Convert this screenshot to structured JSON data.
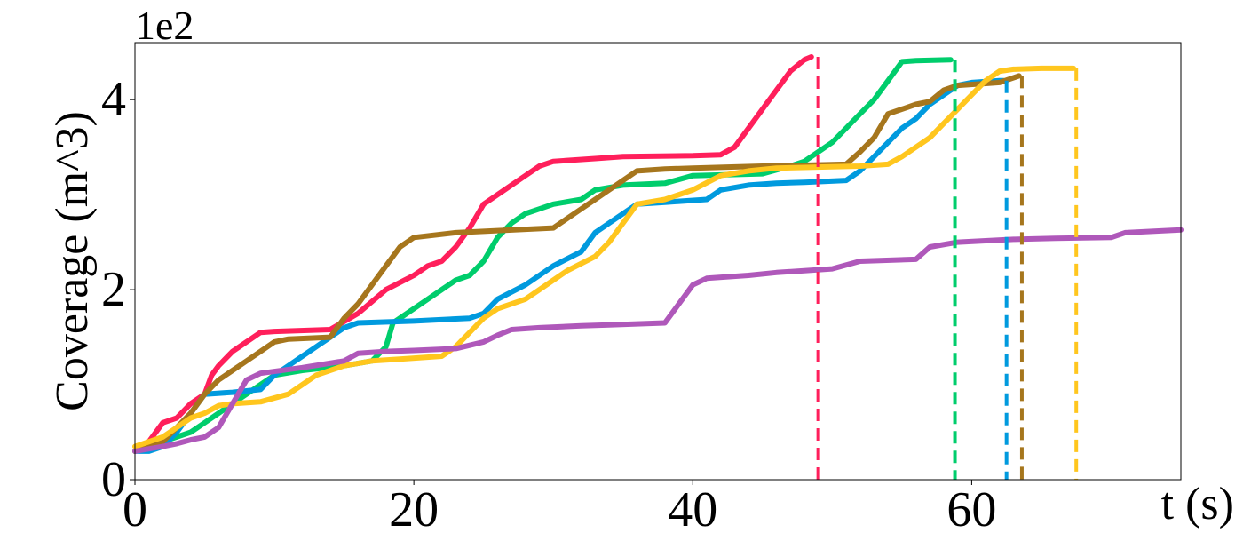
{
  "chart_data": {
    "type": "line",
    "title": "",
    "xlabel": "t (s)",
    "ylabel": "Coverage (m^3)",
    "y_offset_label": "1e2",
    "xlim": [
      0,
      75
    ],
    "ylim": [
      0,
      4.6
    ],
    "xticks": [
      0,
      20,
      40,
      60
    ],
    "yticks": [
      0,
      2,
      4
    ],
    "grid": false,
    "legend": "none",
    "series": [
      {
        "color": "#ff1f5b",
        "end_marker_x": 49,
        "points": [
          [
            0,
            0.3
          ],
          [
            1,
            0.4
          ],
          [
            2,
            0.6
          ],
          [
            3,
            0.65
          ],
          [
            4,
            0.8
          ],
          [
            5,
            0.9
          ],
          [
            5.5,
            1.1
          ],
          [
            6,
            1.2
          ],
          [
            7,
            1.35
          ],
          [
            8,
            1.45
          ],
          [
            9,
            1.55
          ],
          [
            10,
            1.56
          ],
          [
            14,
            1.58
          ],
          [
            16,
            1.75
          ],
          [
            18,
            2.0
          ],
          [
            20,
            2.15
          ],
          [
            21,
            2.25
          ],
          [
            22,
            2.3
          ],
          [
            23,
            2.45
          ],
          [
            24,
            2.65
          ],
          [
            25,
            2.9
          ],
          [
            26,
            3.0
          ],
          [
            27,
            3.1
          ],
          [
            28,
            3.2
          ],
          [
            29,
            3.3
          ],
          [
            30,
            3.35
          ],
          [
            33,
            3.38
          ],
          [
            35,
            3.4
          ],
          [
            40,
            3.41
          ],
          [
            42,
            3.42
          ],
          [
            43,
            3.5
          ],
          [
            44,
            3.7
          ],
          [
            45,
            3.9
          ],
          [
            46,
            4.1
          ],
          [
            47,
            4.3
          ],
          [
            48,
            4.42
          ],
          [
            48.5,
            4.45
          ]
        ]
      },
      {
        "color": "#00cd6c",
        "end_marker_x": 58.8,
        "points": [
          [
            0,
            0.3
          ],
          [
            2,
            0.4
          ],
          [
            4,
            0.5
          ],
          [
            5,
            0.6
          ],
          [
            6,
            0.7
          ],
          [
            7,
            0.8
          ],
          [
            8,
            0.9
          ],
          [
            9,
            1.0
          ],
          [
            10,
            1.1
          ],
          [
            12,
            1.15
          ],
          [
            15,
            1.2
          ],
          [
            17,
            1.25
          ],
          [
            18,
            1.4
          ],
          [
            18.5,
            1.65
          ],
          [
            20,
            1.8
          ],
          [
            21,
            1.9
          ],
          [
            22,
            2.0
          ],
          [
            23,
            2.1
          ],
          [
            24,
            2.15
          ],
          [
            25,
            2.3
          ],
          [
            26,
            2.55
          ],
          [
            27,
            2.7
          ],
          [
            28,
            2.8
          ],
          [
            29,
            2.85
          ],
          [
            30,
            2.9
          ],
          [
            32,
            2.95
          ],
          [
            33,
            3.05
          ],
          [
            35,
            3.1
          ],
          [
            38,
            3.12
          ],
          [
            40,
            3.2
          ],
          [
            45,
            3.22
          ],
          [
            47,
            3.3
          ],
          [
            48,
            3.35
          ],
          [
            49,
            3.45
          ],
          [
            50,
            3.55
          ],
          [
            51,
            3.7
          ],
          [
            52,
            3.85
          ],
          [
            53,
            4.0
          ],
          [
            54,
            4.2
          ],
          [
            55,
            4.4
          ],
          [
            56,
            4.41
          ],
          [
            58.5,
            4.42
          ]
        ]
      },
      {
        "color": "#009ade",
        "end_marker_x": 62.5,
        "points": [
          [
            0,
            0.3
          ],
          [
            1,
            0.3
          ],
          [
            2,
            0.35
          ],
          [
            3,
            0.5
          ],
          [
            4,
            0.7
          ],
          [
            5,
            0.9
          ],
          [
            7,
            0.92
          ],
          [
            9,
            0.95
          ],
          [
            10,
            1.1
          ],
          [
            11,
            1.2
          ],
          [
            12,
            1.3
          ],
          [
            13,
            1.4
          ],
          [
            14,
            1.5
          ],
          [
            15,
            1.6
          ],
          [
            16,
            1.65
          ],
          [
            20,
            1.67
          ],
          [
            24,
            1.7
          ],
          [
            25,
            1.75
          ],
          [
            26,
            1.9
          ],
          [
            28,
            2.05
          ],
          [
            30,
            2.25
          ],
          [
            32,
            2.4
          ],
          [
            33,
            2.6
          ],
          [
            34,
            2.7
          ],
          [
            35,
            2.8
          ],
          [
            36,
            2.9
          ],
          [
            38,
            2.92
          ],
          [
            41,
            2.95
          ],
          [
            42,
            3.05
          ],
          [
            44,
            3.1
          ],
          [
            46,
            3.12
          ],
          [
            48,
            3.13
          ],
          [
            51,
            3.15
          ],
          [
            52,
            3.25
          ],
          [
            53,
            3.4
          ],
          [
            54,
            3.55
          ],
          [
            55,
            3.7
          ],
          [
            56,
            3.8
          ],
          [
            57,
            3.95
          ],
          [
            58,
            4.05
          ],
          [
            59,
            4.15
          ],
          [
            60,
            4.18
          ],
          [
            62,
            4.2
          ],
          [
            62.3,
            4.2
          ]
        ]
      },
      {
        "color": "#a6761d",
        "end_marker_x": 63.6,
        "points": [
          [
            0,
            0.3
          ],
          [
            2,
            0.4
          ],
          [
            3,
            0.55
          ],
          [
            4,
            0.7
          ],
          [
            5,
            0.9
          ],
          [
            6,
            1.05
          ],
          [
            7,
            1.15
          ],
          [
            8,
            1.25
          ],
          [
            9,
            1.35
          ],
          [
            10,
            1.45
          ],
          [
            11,
            1.48
          ],
          [
            14,
            1.5
          ],
          [
            15,
            1.7
          ],
          [
            16,
            1.85
          ],
          [
            17,
            2.05
          ],
          [
            18,
            2.25
          ],
          [
            19,
            2.45
          ],
          [
            20,
            2.55
          ],
          [
            23,
            2.6
          ],
          [
            30,
            2.65
          ],
          [
            31,
            2.75
          ],
          [
            32,
            2.85
          ],
          [
            33,
            2.95
          ],
          [
            34,
            3.05
          ],
          [
            35,
            3.15
          ],
          [
            36,
            3.25
          ],
          [
            38,
            3.27
          ],
          [
            40,
            3.28
          ],
          [
            45,
            3.3
          ],
          [
            51,
            3.32
          ],
          [
            52,
            3.45
          ],
          [
            53,
            3.6
          ],
          [
            54,
            3.85
          ],
          [
            55,
            3.9
          ],
          [
            56,
            3.95
          ],
          [
            57,
            3.98
          ],
          [
            58,
            4.1
          ],
          [
            59,
            4.15
          ],
          [
            61,
            4.17
          ],
          [
            62,
            4.18
          ],
          [
            63.4,
            4.25
          ]
        ]
      },
      {
        "color": "#ffc61e",
        "end_marker_x": 67.5,
        "points": [
          [
            0,
            0.35
          ],
          [
            2,
            0.45
          ],
          [
            3,
            0.55
          ],
          [
            4,
            0.65
          ],
          [
            5,
            0.7
          ],
          [
            6,
            0.78
          ],
          [
            7,
            0.8
          ],
          [
            9,
            0.82
          ],
          [
            11,
            0.9
          ],
          [
            12,
            1.0
          ],
          [
            13,
            1.1
          ],
          [
            15,
            1.2
          ],
          [
            17,
            1.25
          ],
          [
            19,
            1.27
          ],
          [
            22,
            1.3
          ],
          [
            23,
            1.4
          ],
          [
            24,
            1.55
          ],
          [
            25,
            1.7
          ],
          [
            26,
            1.8
          ],
          [
            28,
            1.9
          ],
          [
            29,
            2.0
          ],
          [
            30,
            2.1
          ],
          [
            31,
            2.2
          ],
          [
            33,
            2.35
          ],
          [
            34,
            2.5
          ],
          [
            35,
            2.7
          ],
          [
            36,
            2.9
          ],
          [
            38,
            2.95
          ],
          [
            40,
            3.05
          ],
          [
            42,
            3.2
          ],
          [
            44,
            3.25
          ],
          [
            46,
            3.28
          ],
          [
            52,
            3.3
          ],
          [
            54,
            3.32
          ],
          [
            55,
            3.4
          ],
          [
            56,
            3.5
          ],
          [
            57,
            3.6
          ],
          [
            58,
            3.75
          ],
          [
            59,
            3.9
          ],
          [
            60,
            4.05
          ],
          [
            61,
            4.2
          ],
          [
            62,
            4.3
          ],
          [
            63,
            4.32
          ],
          [
            65,
            4.33
          ],
          [
            67.3,
            4.33
          ]
        ]
      },
      {
        "color": "#af58ba",
        "end_marker_x": null,
        "points": [
          [
            0,
            0.3
          ],
          [
            2,
            0.35
          ],
          [
            3,
            0.38
          ],
          [
            4,
            0.42
          ],
          [
            5,
            0.45
          ],
          [
            6,
            0.55
          ],
          [
            7,
            0.8
          ],
          [
            8,
            1.05
          ],
          [
            9,
            1.12
          ],
          [
            12,
            1.18
          ],
          [
            15,
            1.25
          ],
          [
            16,
            1.33
          ],
          [
            18,
            1.35
          ],
          [
            20,
            1.36
          ],
          [
            23,
            1.38
          ],
          [
            25,
            1.45
          ],
          [
            26,
            1.52
          ],
          [
            27,
            1.58
          ],
          [
            29,
            1.6
          ],
          [
            32,
            1.62
          ],
          [
            34,
            1.63
          ],
          [
            38,
            1.65
          ],
          [
            39,
            1.85
          ],
          [
            40,
            2.05
          ],
          [
            41,
            2.12
          ],
          [
            44,
            2.15
          ],
          [
            46,
            2.18
          ],
          [
            48,
            2.2
          ],
          [
            50,
            2.22
          ],
          [
            52,
            2.3
          ],
          [
            56,
            2.32
          ],
          [
            57,
            2.45
          ],
          [
            59,
            2.5
          ],
          [
            63,
            2.53
          ],
          [
            66,
            2.54
          ],
          [
            70,
            2.55
          ],
          [
            71,
            2.6
          ],
          [
            75,
            2.63
          ]
        ]
      }
    ]
  }
}
